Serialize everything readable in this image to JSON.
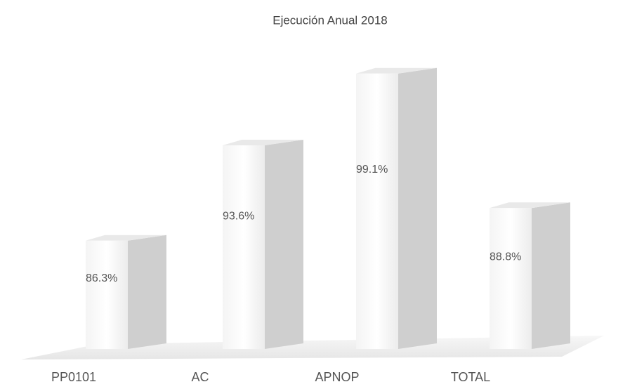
{
  "chart_data": {
    "type": "bar3d",
    "title": "Ejecución Anual 2018",
    "categories": [
      "PP0101",
      "AC",
      "APNOP",
      "TOTAL"
    ],
    "values": [
      86.3,
      93.6,
      99.1,
      88.8
    ],
    "value_labels": [
      "86.3%",
      "93.6%",
      "99.1%",
      "88.8%"
    ],
    "ylim": [
      78,
      100
    ],
    "color": "#ffffff",
    "side_color": "#cfcfcf"
  }
}
